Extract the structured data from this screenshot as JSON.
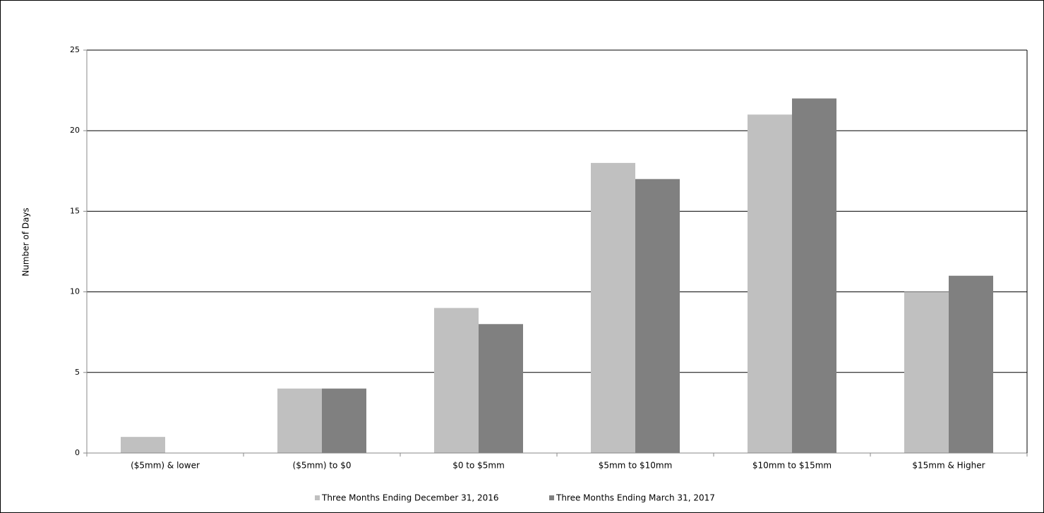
{
  "chart_data": {
    "type": "bar",
    "y_label": "Number of Days",
    "categories": [
      "($5mm) & lower",
      "($5mm) to $0",
      "$0 to $5mm",
      "$5mm to $10mm",
      "$10mm to $15mm",
      "$15mm & Higher"
    ],
    "series": [
      {
        "name": "Three Months Ending December 31, 2016",
        "color": "#c0c0c0",
        "values": [
          1,
          4,
          9,
          18,
          21,
          10
        ]
      },
      {
        "name": "Three Months Ending March 31, 2017",
        "color": "#808080",
        "values": [
          0,
          4,
          8,
          17,
          22,
          11
        ]
      }
    ],
    "ylim": [
      0,
      25
    ],
    "yticks": [
      0,
      5,
      10,
      15,
      20,
      25
    ],
    "grid": true,
    "legend": "bottom"
  }
}
